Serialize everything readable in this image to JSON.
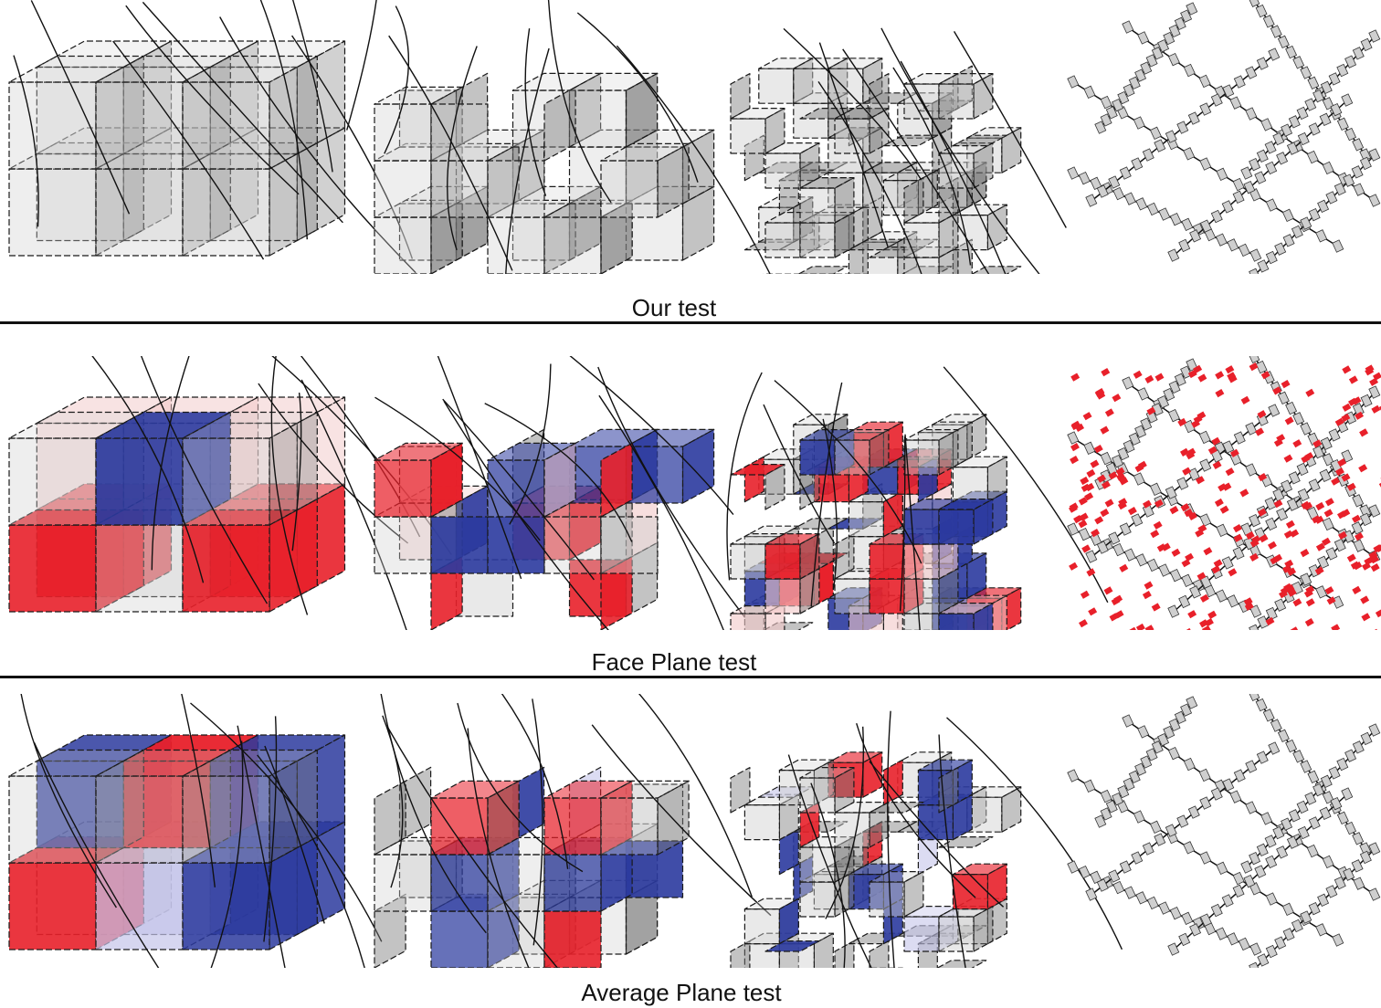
{
  "rows": [
    {
      "caption": "Our test",
      "highlight": "none",
      "panels": 4
    },
    {
      "caption": "Face Plane test",
      "highlight": "red-blue",
      "panels": 4
    },
    {
      "caption": "Average Plane test",
      "highlight": "red-blue-partial",
      "panels": 4
    }
  ],
  "colors": {
    "face_gray": "#cfcfcf",
    "face_dark": "#7a7a7a",
    "edge": "#1a1a1a",
    "red": "#e8202a",
    "blue": "#2b3a9e",
    "pink": "#f2c8c8",
    "lavender": "#c4c4ea",
    "separator": "#111111"
  }
}
